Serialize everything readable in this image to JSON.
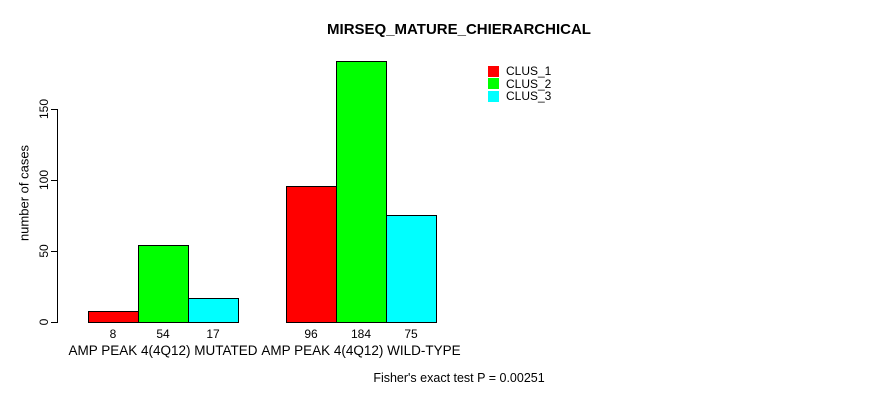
{
  "chart_data": {
    "type": "bar",
    "title": "MIRSEQ_MATURE_CHIERARCHICAL",
    "xlabel": "",
    "ylabel": "number of cases",
    "ylim": [
      0,
      150
    ],
    "yticks": [
      0,
      50,
      100,
      150
    ],
    "grid": false,
    "legend_position": "top-right",
    "bar_labels": true,
    "categories": [
      "AMP PEAK 4(4Q12) MUTATED",
      "AMP PEAK 4(4Q12) WILD-TYPE"
    ],
    "series": [
      {
        "name": "CLUS_1",
        "color": "#FF0000",
        "values": [
          8,
          96
        ]
      },
      {
        "name": "CLUS_2",
        "color": "#00FF00",
        "values": [
          54,
          184
        ]
      },
      {
        "name": "CLUS_3",
        "color": "#00FFFF",
        "values": [
          17,
          75
        ]
      }
    ],
    "annotation": "Fisher's exact test P = 0.00251"
  }
}
